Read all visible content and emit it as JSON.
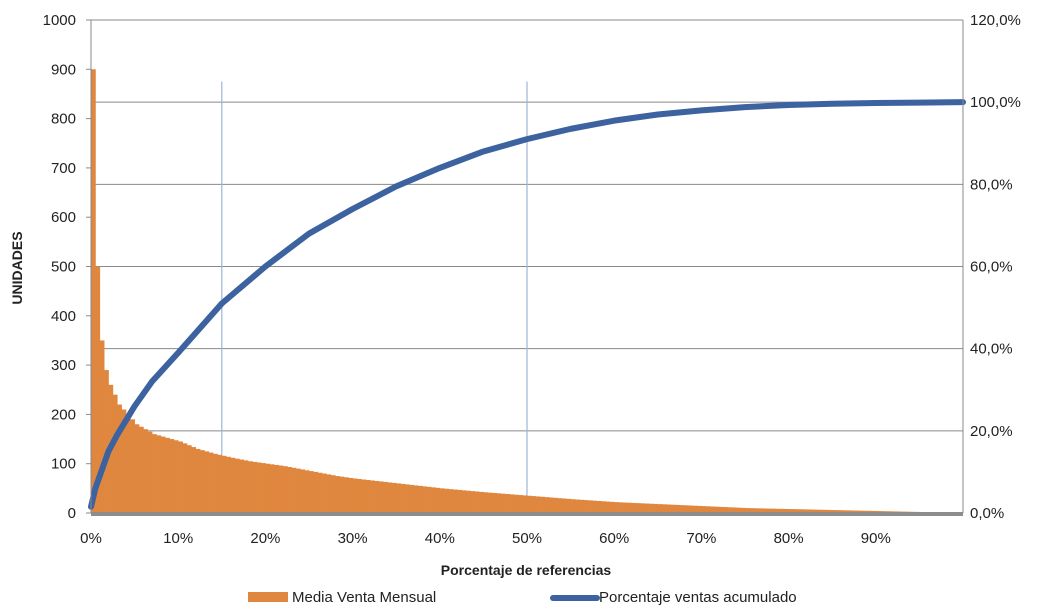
{
  "chart_data": {
    "type": "bar+line",
    "xlabel": "Porcentaje de referencias",
    "ylabel": "UNIDADES",
    "y2label": "",
    "title": "",
    "x_ticks": [
      "0%",
      "10%",
      "20%",
      "30%",
      "40%",
      "50%",
      "60%",
      "70%",
      "80%",
      "90%"
    ],
    "x_tick_values": [
      0,
      10,
      20,
      30,
      40,
      50,
      60,
      70,
      80,
      90
    ],
    "xlim": [
      0,
      100
    ],
    "y_left_ticks": [
      "0",
      "100",
      "200",
      "300",
      "400",
      "500",
      "600",
      "700",
      "800",
      "900",
      "1000"
    ],
    "ylim_left": [
      0,
      1000
    ],
    "y_right_ticks": [
      "0,0%",
      "20,0%",
      "40,0%",
      "60,0%",
      "80,0%",
      "100,0%",
      "120,0%"
    ],
    "ylim_right": [
      0,
      120
    ],
    "grid": "horizontal",
    "reference_lines_x": [
      15,
      50
    ],
    "legend_position": "bottom",
    "series": [
      {
        "name": "Media Venta Mensual",
        "kind": "bar",
        "axis": "left",
        "color": "#E0873F",
        "x": [
          0,
          0.3,
          0.6,
          1,
          1.5,
          2,
          3,
          4,
          5,
          6,
          7,
          8,
          9,
          10,
          12,
          14,
          16,
          18,
          20,
          22,
          25,
          28,
          30,
          35,
          40,
          45,
          50,
          55,
          60,
          65,
          70,
          75,
          80,
          85,
          90,
          95,
          100
        ],
        "y": [
          900,
          600,
          450,
          350,
          290,
          260,
          220,
          200,
          180,
          170,
          160,
          155,
          150,
          145,
          130,
          120,
          112,
          105,
          100,
          95,
          85,
          75,
          70,
          60,
          50,
          42,
          35,
          28,
          22,
          18,
          14,
          10,
          8,
          6,
          4,
          2,
          0
        ]
      },
      {
        "name": "Porcentaje ventas acumulado",
        "kind": "line",
        "axis": "right",
        "color": "#3C62A0",
        "x": [
          0,
          0.5,
          1,
          2,
          3,
          5,
          7,
          10,
          15,
          20,
          25,
          30,
          35,
          40,
          45,
          50,
          55,
          60,
          65,
          70,
          75,
          80,
          85,
          90,
          95,
          100
        ],
        "y": [
          1.5,
          6,
          9,
          15,
          19,
          26,
          32,
          39,
          51,
          60,
          68,
          74,
          79.5,
          84,
          88,
          91,
          93.5,
          95.5,
          97,
          98,
          98.8,
          99.3,
          99.6,
          99.8,
          99.9,
          100
        ]
      }
    ]
  }
}
